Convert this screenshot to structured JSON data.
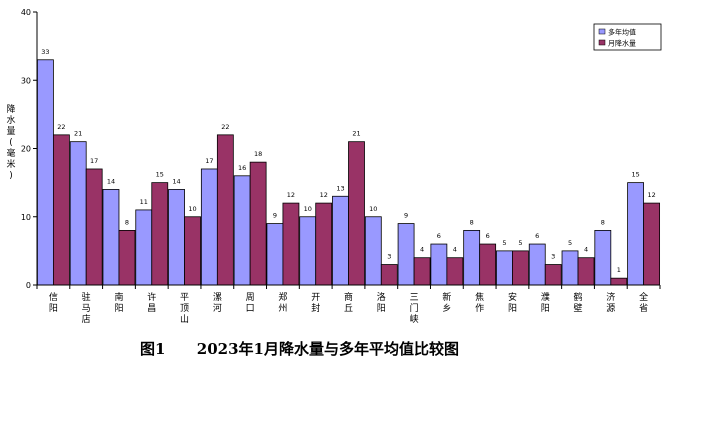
{
  "caption": {
    "figure_no": "图1",
    "title": "2023年1月降水量与多年平均值比较图"
  },
  "chart_data": {
    "type": "bar",
    "ylabel": "降水量(毫米)",
    "ylim": [
      0,
      40
    ],
    "yticks": [
      0,
      10,
      20,
      30,
      40
    ],
    "legend_position": "top-right",
    "grid": false,
    "categories": [
      "信阳",
      "驻马店",
      "南阳",
      "许昌",
      "平顶山",
      "漯河",
      "周口",
      "郑州",
      "开封",
      "商丘",
      "洛阳",
      "三门峡",
      "新乡",
      "焦作",
      "安阳",
      "濮阳",
      "鹤壁",
      "济源",
      "全省"
    ],
    "series": [
      {
        "name": "多年均值",
        "color": "#9999ff",
        "values": [
          33,
          21,
          14,
          11,
          14,
          17,
          16,
          9,
          10,
          13,
          10,
          9,
          6,
          8,
          5,
          6,
          5,
          8,
          15
        ]
      },
      {
        "name": "月降水量",
        "color": "#993366",
        "values": [
          22,
          17,
          8,
          15,
          10,
          22,
          18,
          12,
          12,
          21,
          3,
          4,
          4,
          6,
          5,
          3,
          4,
          1,
          12
        ]
      }
    ]
  }
}
